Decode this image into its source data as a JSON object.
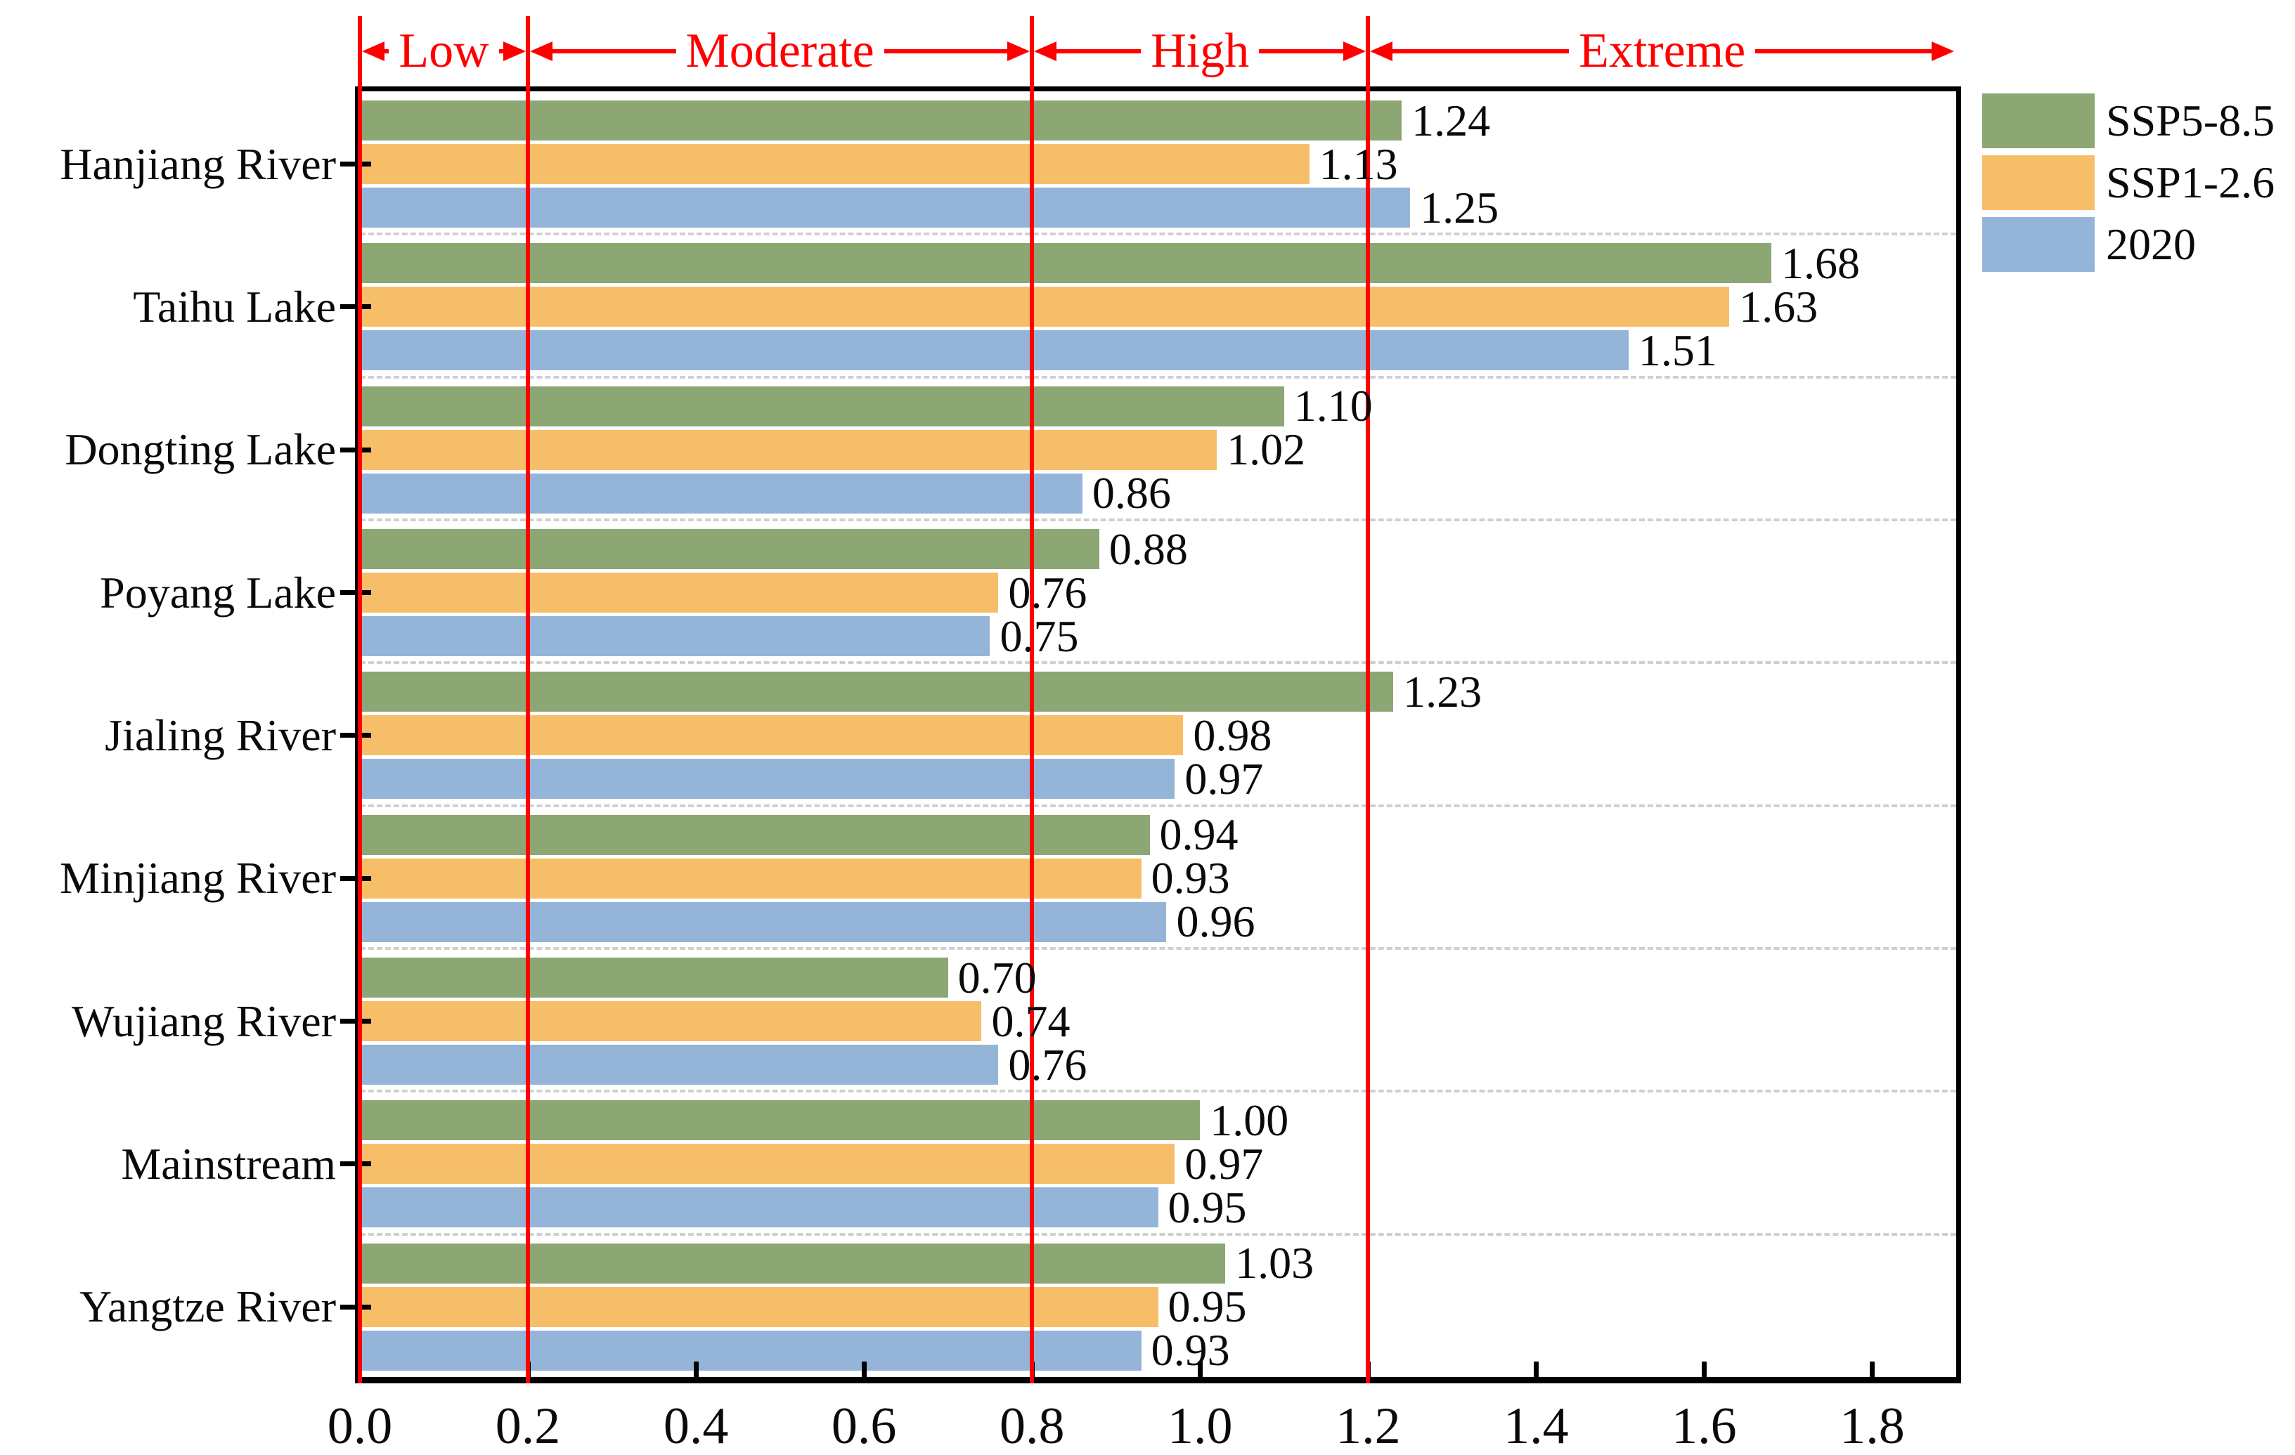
{
  "chart_data": {
    "type": "bar",
    "orientation": "horizontal",
    "categories": [
      "Hanjiang River",
      "Taihu Lake",
      "Dongting Lake",
      "Poyang Lake",
      "Jialing River",
      "Minjiang River",
      "Wujiang River",
      "Mainstream",
      "Yangtze River"
    ],
    "series": [
      {
        "name": "SSP5-8.5",
        "color": "#8CA674",
        "values": [
          1.24,
          1.68,
          1.1,
          0.88,
          1.23,
          0.94,
          0.7,
          1.0,
          1.03
        ]
      },
      {
        "name": "SSP1-2.6",
        "color": "#F7BE69",
        "values": [
          1.13,
          1.63,
          1.02,
          0.76,
          0.98,
          0.93,
          0.74,
          0.97,
          0.95
        ]
      },
      {
        "name": "2020",
        "color": "#95B5D8",
        "values": [
          1.25,
          1.51,
          0.86,
          0.75,
          0.97,
          0.96,
          0.76,
          0.95,
          0.93
        ]
      }
    ],
    "xlim": [
      0,
      1.9
    ],
    "x_ticks": [
      "0.0",
      "0.2",
      "0.4",
      "0.6",
      "0.8",
      "1.0",
      "1.2",
      "1.4",
      "1.6",
      "1.8"
    ],
    "value_label_decimals": 2,
    "risk_zones": [
      {
        "label": "Low",
        "from": 0.0,
        "to": 0.2
      },
      {
        "label": "Moderate",
        "from": 0.2,
        "to": 0.8
      },
      {
        "label": "High",
        "from": 0.8,
        "to": 1.2
      },
      {
        "label": "Extreme",
        "from": 1.2,
        "to": 1.9
      }
    ],
    "zone_boundaries": [
      0.0,
      0.2,
      0.8,
      1.2
    ],
    "zone_color": "#FF0000",
    "legend_position": "top-right-outside",
    "grid": "dashed-horizontal-group-separators"
  }
}
